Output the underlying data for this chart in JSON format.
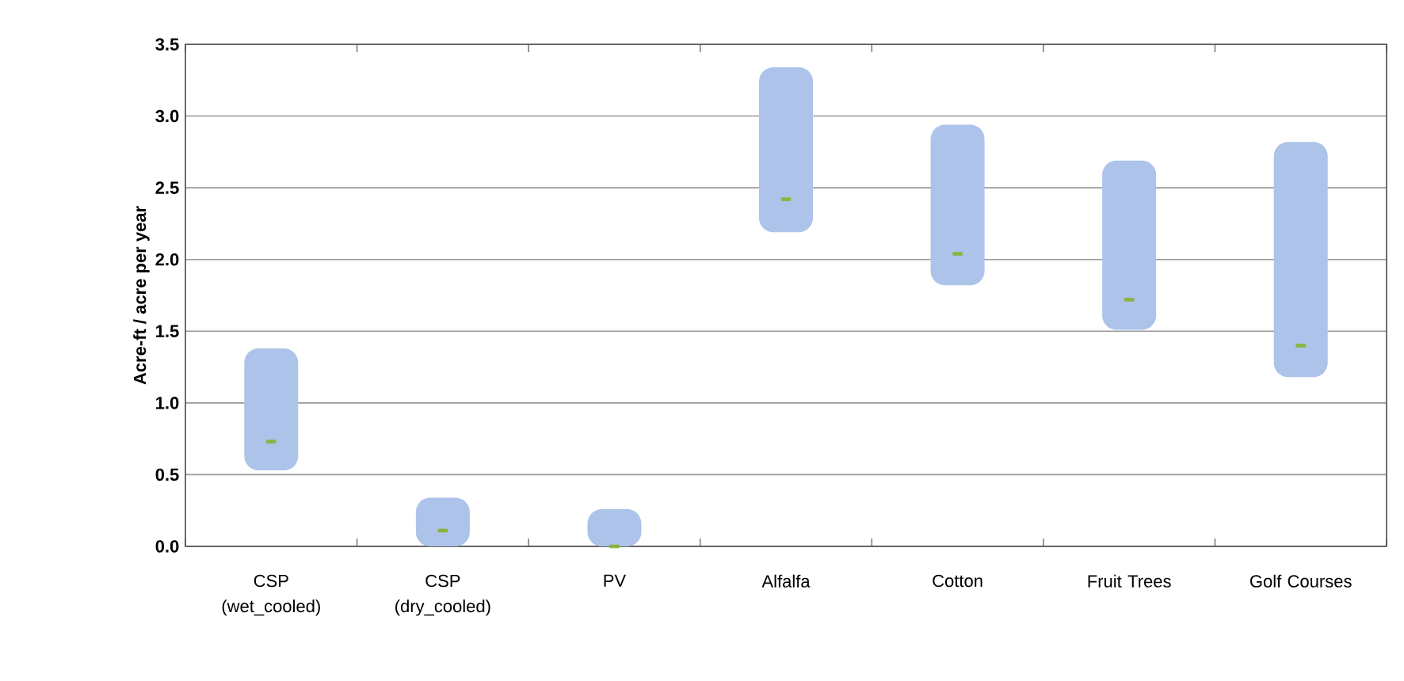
{
  "chart_data": {
    "type": "bar",
    "ylabel": "Acre-ft / acre per year",
    "categories": [
      "CSP (wet_cooled)",
      "CSP (dry_cooled)",
      "PV",
      "Alfalfa",
      "Cotton",
      "Fruit Trees",
      "Golf Courses"
    ],
    "series": [
      {
        "color": "#adc3e9",
        "base": [
          0.53,
          0,
          0,
          2.19,
          1.82,
          1.51,
          1.18
        ],
        "values": [
          0.85,
          0.34,
          0.26,
          1.15,
          1.12,
          1.18,
          1.64
        ]
      },
      {
        "type": "scatter",
        "color": "#8cb43c",
        "x": [
          "CSP (wet_cooled)",
          "CSP (dry_cooled)",
          "PV",
          "Alfalfa",
          "Cotton",
          "Fruit Trees",
          "Golf Courses"
        ],
        "values": [
          0.73,
          0.11,
          0,
          2.42,
          2.04,
          1.72,
          1.4
        ]
      }
    ],
    "ylim": [
      0,
      3.5
    ],
    "yticks": [
      {
        "value": 0,
        "label": "0.0"
      },
      0.5,
      {
        "value": 1,
        "label": "1.0"
      },
      1.5,
      {
        "value": 2,
        "label": "2.0"
      },
      2.5,
      {
        "value": 3,
        "label": "3.0"
      },
      3.5
    ],
    "grid": "y"
  }
}
